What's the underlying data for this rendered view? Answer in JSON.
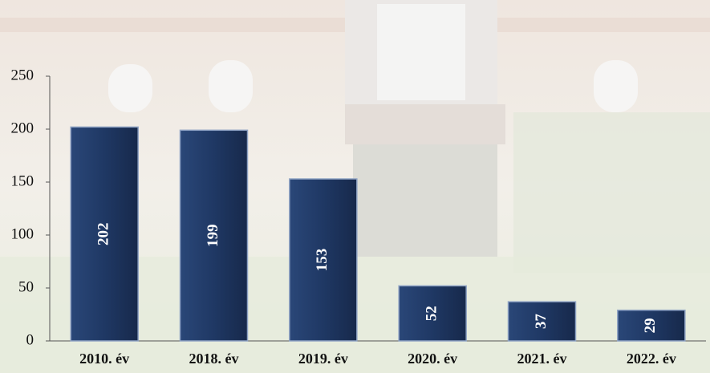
{
  "chart_data": {
    "type": "bar",
    "categories": [
      "2010. év",
      "2018. év",
      "2019. év",
      "2020. év",
      "2021. év",
      "2022. év"
    ],
    "values": [
      202,
      199,
      153,
      52,
      37,
      29
    ],
    "color": "#1f3864",
    "ylim": [
      0,
      250
    ],
    "yticks": [
      0,
      50,
      100,
      150,
      200,
      250
    ]
  }
}
